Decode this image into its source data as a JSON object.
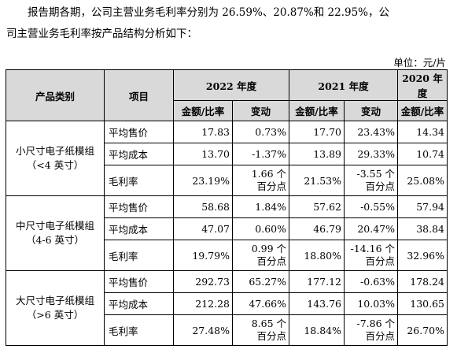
{
  "paragraph": {
    "line1": "报告期各期，公司主营业务毛利率分别为 26.59%、20.87%和 22.95%，公",
    "line2": "司主营业务毛利率按产品结构分析如下："
  },
  "unit": "单位：元/片",
  "table": {
    "headers": {
      "category": "产品类别",
      "item": "项目",
      "y2022": "2022 年度",
      "y2021": "2021 年度",
      "y2020": "2020 年度",
      "amount": "金额/比率",
      "change": "变动"
    },
    "groups": [
      {
        "category": "小尺寸电子纸模组（<4 英寸）",
        "rows": [
          {
            "item": "平均售价",
            "a2022": "17.83",
            "c2022": "0.73%",
            "a2021": "17.70",
            "c2021": "23.43%",
            "a2020": "14.34"
          },
          {
            "item": "平均成本",
            "a2022": "13.70",
            "c2022": "-1.37%",
            "a2021": "13.89",
            "c2021": "29.33%",
            "a2020": "10.74"
          },
          {
            "item": "毛利率",
            "a2022": "23.19%",
            "c2022a": "1.66 个",
            "c2022b": "百分点",
            "a2021": "21.53%",
            "c2021a": "-3.55 个",
            "c2021b": "百分点",
            "a2020": "25.08%"
          }
        ]
      },
      {
        "category": "中尺寸电子纸模组（4-6 英寸）",
        "rows": [
          {
            "item": "平均售价",
            "a2022": "58.68",
            "c2022": "1.84%",
            "a2021": "57.62",
            "c2021": "-0.55%",
            "a2020": "57.94"
          },
          {
            "item": "平均成本",
            "a2022": "47.07",
            "c2022": "0.60%",
            "a2021": "46.79",
            "c2021": "20.47%",
            "a2020": "38.84"
          },
          {
            "item": "毛利率",
            "a2022": "19.79%",
            "c2022a": "0.99 个",
            "c2022b": "百分点",
            "a2021": "18.80%",
            "c2021a": "-14.16 个",
            "c2021b": "百分点",
            "a2020": "32.96%"
          }
        ]
      },
      {
        "category": "大尺寸电子纸模组（>6 英寸）",
        "rows": [
          {
            "item": "平均售价",
            "a2022": "292.73",
            "c2022": "65.27%",
            "a2021": "177.12",
            "c2021": "-0.63%",
            "a2020": "178.24"
          },
          {
            "item": "平均成本",
            "a2022": "212.28",
            "c2022": "47.66%",
            "a2021": "143.76",
            "c2021": "10.03%",
            "a2020": "130.65"
          },
          {
            "item": "毛利率",
            "a2022": "27.48%",
            "c2022a": "8.65 个",
            "c2022b": "百分点",
            "a2021": "18.84%",
            "c2021a": "-7.86 个",
            "c2021b": "百分点",
            "a2020": "26.70%"
          }
        ]
      }
    ]
  }
}
